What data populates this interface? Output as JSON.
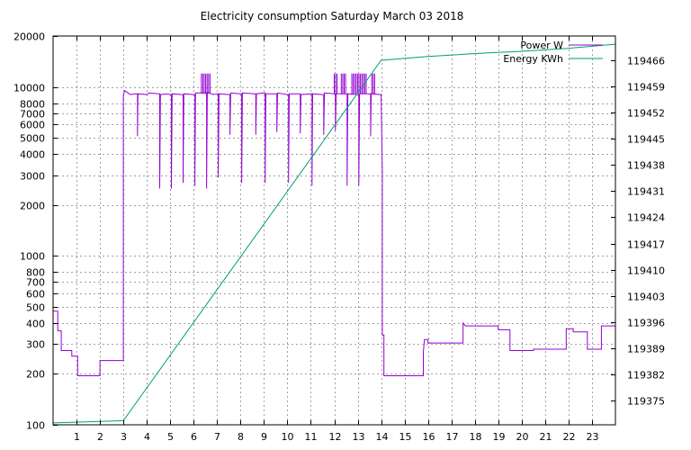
{
  "chart_data": {
    "type": "line",
    "title": "Electricity consumption Saturday March 03 2018",
    "xlim": [
      0,
      24
    ],
    "x_ticks": [
      1,
      2,
      3,
      4,
      5,
      6,
      7,
      8,
      9,
      10,
      11,
      12,
      13,
      14,
      15,
      16,
      17,
      18,
      19,
      20,
      21,
      22,
      23
    ],
    "y_left": {
      "scale": "log",
      "lim": [
        100,
        20000
      ],
      "ticks": [
        {
          "value": 100,
          "label": "100"
        },
        {
          "value": 200,
          "label": "200"
        },
        {
          "value": 300,
          "label": "300"
        },
        {
          "value": 400,
          "label": "400"
        },
        {
          "value": 500,
          "label": "500"
        },
        {
          "value": 600,
          "label": "600"
        },
        {
          "value": 700,
          "label": "700"
        },
        {
          "value": 800,
          "label": "800"
        },
        {
          "value": 1000,
          "label": "1000"
        },
        {
          "value": 2000,
          "label": "2000"
        },
        {
          "value": 3000,
          "label": "3000"
        },
        {
          "value": 4000,
          "label": "4000"
        },
        {
          "value": 5000,
          "label": "5000"
        },
        {
          "value": 6000,
          "label": "6000"
        },
        {
          "value": 7000,
          "label": "7000"
        },
        {
          "value": 8000,
          "label": "8000"
        },
        {
          "value": 10000,
          "label": "10000"
        },
        {
          "value": 20000,
          "label": "20000"
        }
      ]
    },
    "y_right": {
      "scale": "linear",
      "lim": [
        119368.5,
        119472.5
      ],
      "ticks": [
        119375,
        119382,
        119389,
        119396,
        119403,
        119410,
        119417,
        119424,
        119431,
        119438,
        119445,
        119452,
        119459,
        119466
      ]
    },
    "grid": true,
    "legend_position": "top-right",
    "series": [
      {
        "name": "Power W",
        "axis": "left",
        "color": "#9400d3",
        "points": [
          [
            0.0,
            470
          ],
          [
            0.2,
            470
          ],
          [
            0.2,
            360
          ],
          [
            0.35,
            360
          ],
          [
            0.35,
            275
          ],
          [
            0.8,
            275
          ],
          [
            0.8,
            255
          ],
          [
            1.05,
            255
          ],
          [
            1.05,
            195
          ],
          [
            2.0,
            195
          ],
          [
            2.0,
            240
          ],
          [
            3.0,
            240
          ],
          [
            3.0,
            8900
          ],
          [
            3.05,
            9500
          ],
          [
            3.3,
            9000
          ],
          [
            3.5,
            9100
          ],
          [
            3.6,
            9100
          ],
          [
            3.6,
            5100
          ],
          [
            3.62,
            9100
          ],
          [
            4.0,
            9000
          ],
          [
            4.1,
            9200
          ],
          [
            4.5,
            9100
          ],
          [
            4.55,
            9100
          ],
          [
            4.55,
            2500
          ],
          [
            4.58,
            9000
          ],
          [
            4.9,
            9100
          ],
          [
            5.0,
            9000
          ],
          [
            5.05,
            9000
          ],
          [
            5.05,
            2500
          ],
          [
            5.08,
            9100
          ],
          [
            5.5,
            9000
          ],
          [
            5.55,
            9000
          ],
          [
            5.55,
            2700
          ],
          [
            5.58,
            9100
          ],
          [
            6.0,
            9000
          ],
          [
            6.05,
            9000
          ],
          [
            6.05,
            2600
          ],
          [
            6.08,
            9200
          ],
          [
            6.5,
            9200
          ],
          [
            6.55,
            9200
          ],
          [
            6.55,
            2500
          ],
          [
            6.58,
            9300
          ],
          [
            6.85,
            9000
          ],
          [
            7.0,
            9100
          ],
          [
            7.05,
            9100
          ],
          [
            7.05,
            2900
          ],
          [
            7.08,
            9100
          ],
          [
            7.5,
            9000
          ],
          [
            7.55,
            9000
          ],
          [
            7.55,
            5200
          ],
          [
            7.58,
            9200
          ],
          [
            8.0,
            9100
          ],
          [
            8.05,
            9100
          ],
          [
            8.05,
            2700
          ],
          [
            8.08,
            9200
          ],
          [
            8.6,
            9100
          ],
          [
            8.65,
            9100
          ],
          [
            8.65,
            5200
          ],
          [
            8.68,
            9100
          ],
          [
            9.0,
            9200
          ],
          [
            9.05,
            9200
          ],
          [
            9.05,
            2700
          ],
          [
            9.08,
            9100
          ],
          [
            9.5,
            9100
          ],
          [
            9.55,
            9100
          ],
          [
            9.55,
            5400
          ],
          [
            9.58,
            9200
          ],
          [
            10.0,
            9000
          ],
          [
            10.05,
            9000
          ],
          [
            10.05,
            2700
          ],
          [
            10.08,
            9100
          ],
          [
            10.5,
            9100
          ],
          [
            10.55,
            9100
          ],
          [
            10.55,
            5300
          ],
          [
            10.58,
            9000
          ],
          [
            11.0,
            9100
          ],
          [
            11.05,
            9100
          ],
          [
            11.05,
            2600
          ],
          [
            11.08,
            9100
          ],
          [
            11.5,
            9000
          ],
          [
            11.55,
            9000
          ],
          [
            11.55,
            5200
          ],
          [
            11.58,
            9200
          ],
          [
            12.0,
            9100
          ],
          [
            12.05,
            9100
          ],
          [
            12.05,
            5500
          ],
          [
            12.08,
            9100
          ],
          [
            12.5,
            9100
          ],
          [
            12.55,
            9100
          ],
          [
            12.55,
            2600
          ],
          [
            12.58,
            9100
          ],
          [
            13.0,
            9000
          ],
          [
            13.05,
            9000
          ],
          [
            13.05,
            2600
          ],
          [
            13.08,
            9100
          ],
          [
            13.5,
            9100
          ],
          [
            13.55,
            9100
          ],
          [
            13.55,
            5100
          ],
          [
            13.58,
            9100
          ],
          [
            14.0,
            9000
          ],
          [
            14.05,
            3200
          ],
          [
            14.05,
            340
          ],
          [
            14.12,
            340
          ],
          [
            14.12,
            195
          ],
          [
            15.5,
            195
          ],
          [
            15.8,
            195
          ],
          [
            15.8,
            270
          ],
          [
            15.85,
            320
          ],
          [
            16.0,
            320
          ],
          [
            16.0,
            305
          ],
          [
            17.5,
            305
          ],
          [
            17.5,
            400
          ],
          [
            17.6,
            385
          ],
          [
            19.0,
            385
          ],
          [
            19.0,
            365
          ],
          [
            19.5,
            365
          ],
          [
            19.5,
            275
          ],
          [
            20.5,
            275
          ],
          [
            20.5,
            280
          ],
          [
            21.9,
            280
          ],
          [
            21.9,
            370
          ],
          [
            22.2,
            370
          ],
          [
            22.2,
            355
          ],
          [
            22.8,
            355
          ],
          [
            22.8,
            280
          ],
          [
            23.4,
            280
          ],
          [
            23.4,
            385
          ],
          [
            24.0,
            385
          ]
        ]
      },
      {
        "name": "Energy KWh",
        "axis": "right",
        "color": "#009e73",
        "points": [
          [
            0.0,
            119369
          ],
          [
            3.0,
            119369.6
          ],
          [
            14.0,
            119466
          ],
          [
            16.0,
            119467.0
          ],
          [
            18.0,
            119467.8
          ],
          [
            20.0,
            119468.4
          ],
          [
            22.0,
            119469.2
          ],
          [
            24.0,
            119470.3
          ]
        ]
      }
    ],
    "power_bursts": [
      [
        6.33,
        6.7
      ],
      [
        12.0,
        12.15
      ],
      [
        12.3,
        12.5
      ],
      [
        12.75,
        13.4
      ],
      [
        13.6,
        13.75
      ]
    ],
    "power_burst_range": [
      9100,
      12000
    ]
  }
}
